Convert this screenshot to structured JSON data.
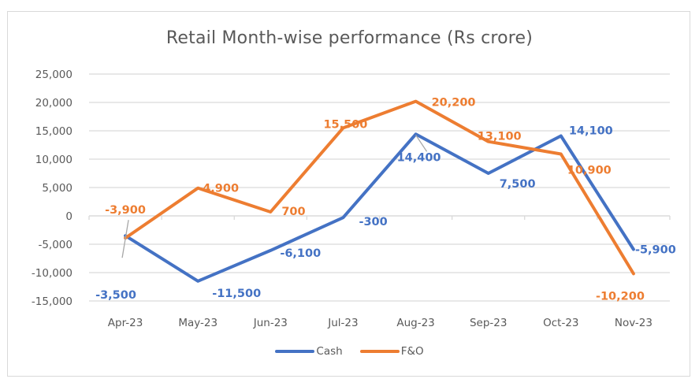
{
  "chart_data": {
    "type": "line",
    "title": "Retail Month-wise performance (Rs crore)",
    "xlabel": "",
    "ylabel": "",
    "categories": [
      "Apr-23",
      "May-23",
      "Jun-23",
      "Jul-23",
      "Aug-23",
      "Sep-23",
      "Oct-23",
      "Nov-23"
    ],
    "ylim": [
      -15000,
      25000
    ],
    "yticks": [
      25000,
      20000,
      15000,
      10000,
      5000,
      0,
      -5000,
      -10000,
      -15000
    ],
    "ytick_labels": [
      "25,000",
      "20,000",
      "15,000",
      "10,000",
      "5,000",
      "0",
      "-5,000",
      "-10,000",
      "-15,000"
    ],
    "grid": true,
    "legend_position": "bottom",
    "series": [
      {
        "name": "Cash",
        "color": "#4472c4",
        "values": [
          -3500,
          -11500,
          -6100,
          -300,
          14400,
          7500,
          14100,
          -5900
        ],
        "labels": [
          "-3,500",
          "-11,500",
          "-6,100",
          "-300",
          "14,400",
          "7,500",
          "14,100",
          "-5,900"
        ]
      },
      {
        "name": "F&O",
        "color": "#ed7d31",
        "values": [
          -3900,
          4900,
          700,
          15500,
          20200,
          13100,
          10900,
          -10200
        ],
        "labels": [
          "-3,900",
          "4,900",
          "700",
          "15,500",
          "20,200",
          "13,100",
          "10,900",
          "-10,200"
        ]
      }
    ]
  }
}
